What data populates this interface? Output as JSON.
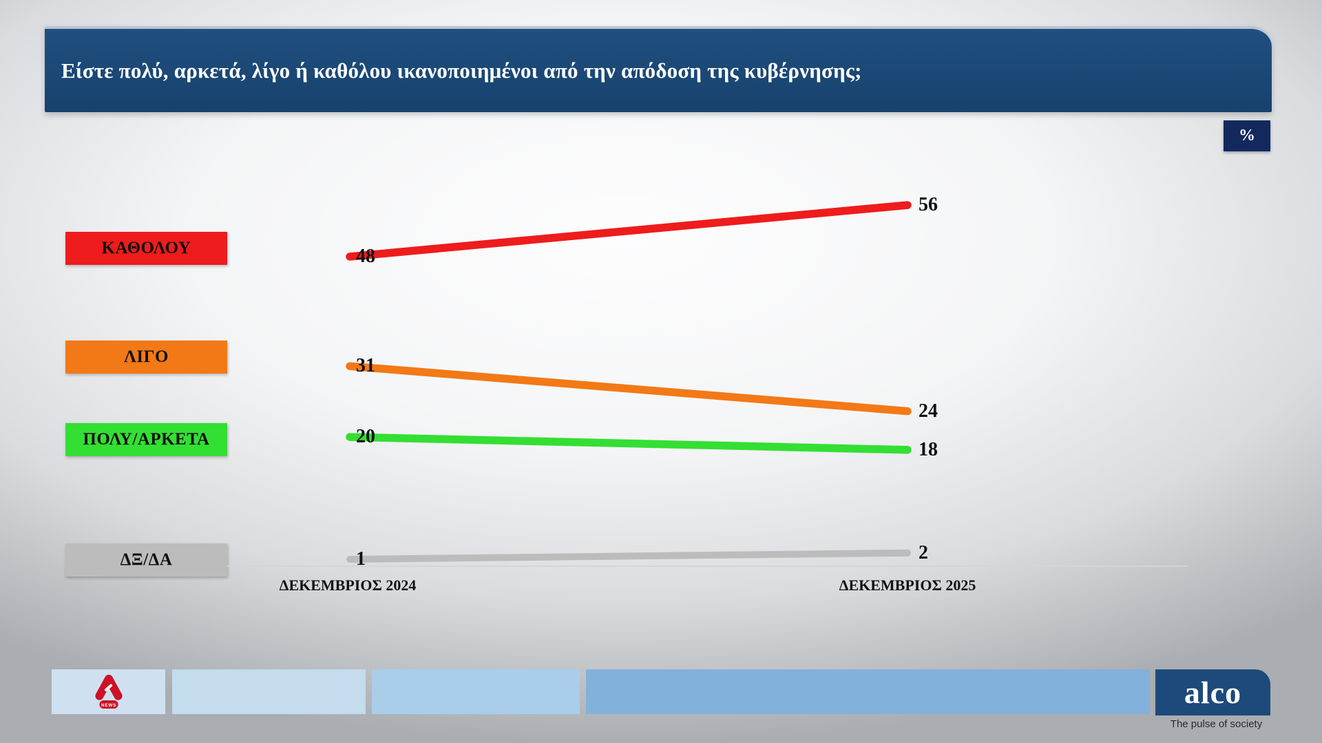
{
  "header": {
    "question": "Είστε πολύ, αρκετά, λίγο ή καθόλου ικανοποιημένοι από την απόδοση της κυβέρνησης;",
    "bg_color": "#1a466f"
  },
  "unit_badge": "%",
  "chart_data": {
    "type": "line",
    "subtype": "slope-chart",
    "title": "Είστε πολύ, αρκετά, λίγο ή καθόλου ικανοποιημένοι από την απόδοση της κυβέρνησης;",
    "unit": "%",
    "grid": false,
    "legend_position": "left",
    "categories": [
      "ΔΕΚΕΜΒΡΙΟΣ 2024",
      "ΔΕΚΕΜΒΡΙΟΣ 2025"
    ],
    "series": [
      {
        "name": "ΚΑΘΟΛΟΥ",
        "values": [
          48,
          56
        ],
        "color": "#ee1c1c"
      },
      {
        "name": "ΛΙΓΟ",
        "values": [
          31,
          24
        ],
        "color": "#f27916"
      },
      {
        "name": "ΠΟΛΥ/ΑΡΚΕΤΑ",
        "values": [
          20,
          18
        ],
        "color": "#33df33"
      },
      {
        "name": "ΔΞ/ΔΑ",
        "values": [
          1,
          2
        ],
        "color": "#bcbcbc"
      }
    ]
  },
  "footer": {
    "alpha_news_label": "NEWS",
    "alpha_red": "#cd1126",
    "alco_logo": "alco",
    "alco_tagline": "The pulse of society",
    "alco_bg": "#1d4a7a"
  }
}
